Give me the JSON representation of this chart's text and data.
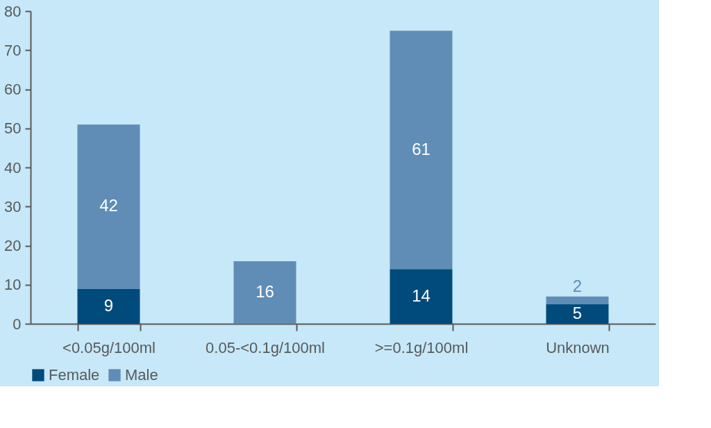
{
  "chart_data": {
    "type": "bar",
    "stacked": true,
    "categories": [
      "<0.05g/100ml",
      "0.05-<0.1g/100ml",
      ">=0.1g/100ml",
      "Unknown"
    ],
    "series": [
      {
        "name": "Female",
        "color": "#004b7c",
        "values": [
          9,
          null,
          14,
          5
        ]
      },
      {
        "name": "Male",
        "color": "#5f8db5",
        "values": [
          42,
          16,
          61,
          2
        ]
      }
    ],
    "ylim": [
      0,
      80
    ],
    "yticks": [
      0,
      10,
      20,
      30,
      40,
      50,
      60,
      70,
      80
    ],
    "grid": false,
    "legend": "bottom",
    "data_labels": true
  }
}
